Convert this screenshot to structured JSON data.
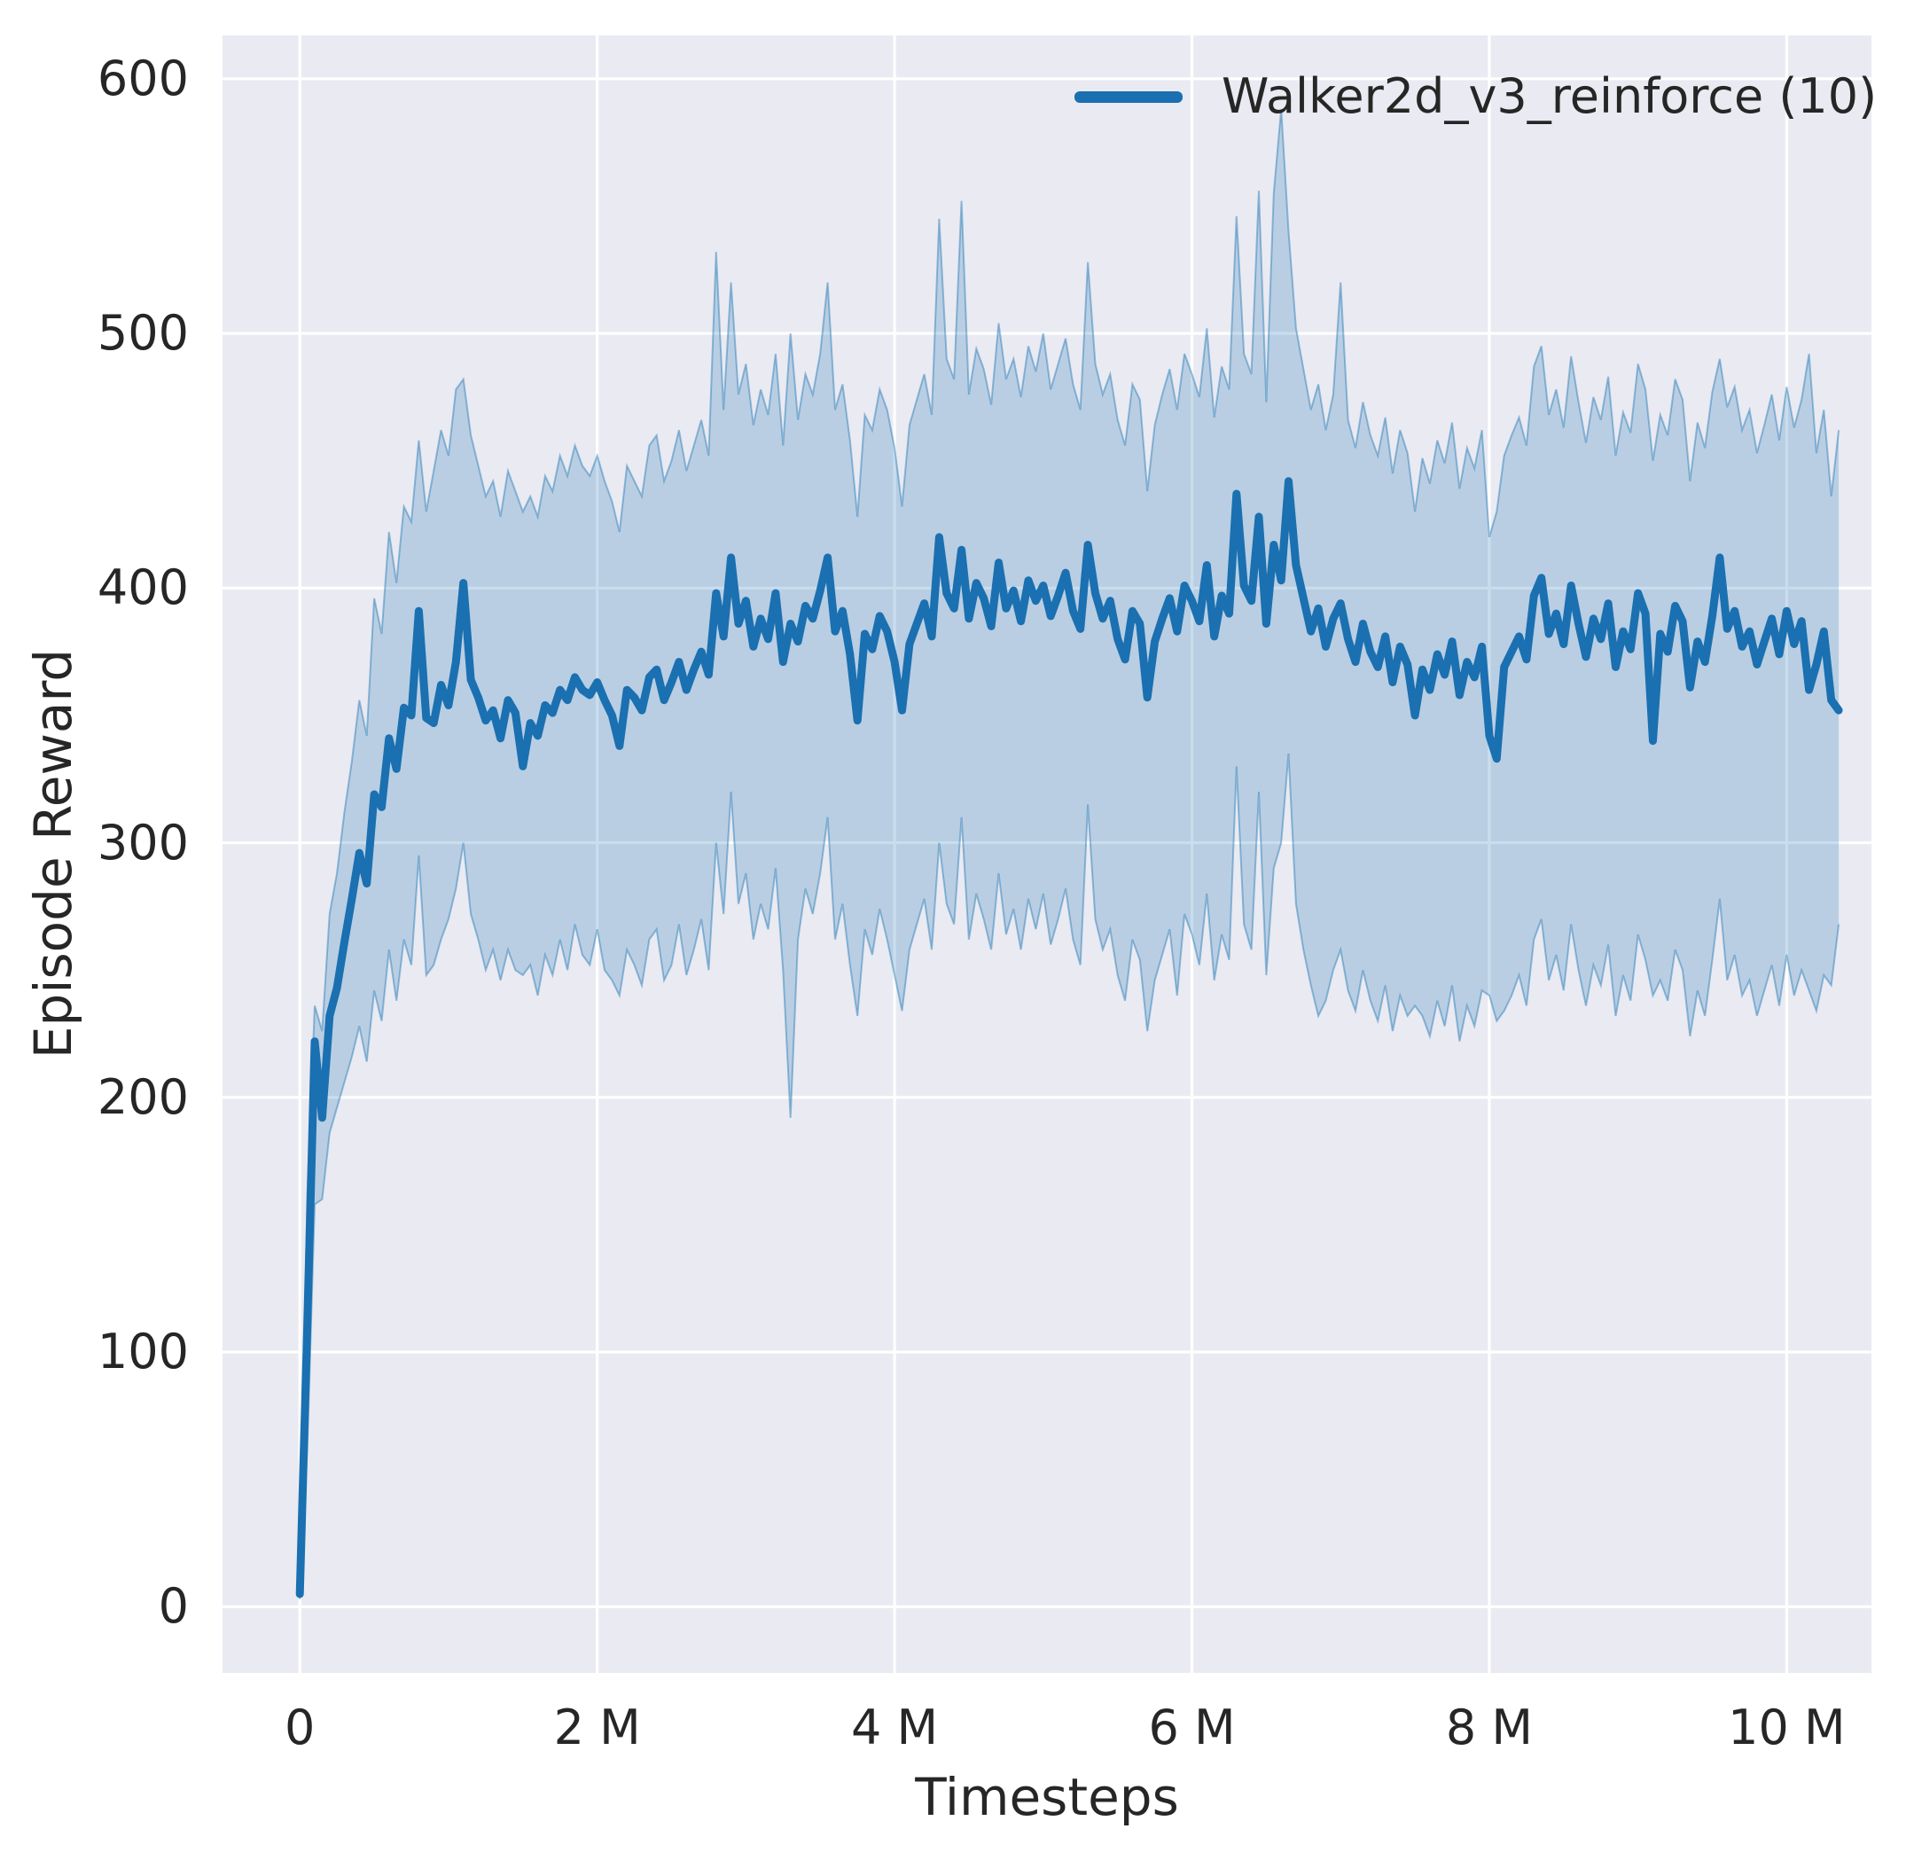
{
  "chart_data": {
    "type": "line",
    "title": "",
    "xlabel": "Timesteps",
    "ylabel": "Episode Reward",
    "legend_position": "upper right",
    "grid": true,
    "background_color": "#eaeaf2",
    "gridline_color": "#ffffff",
    "text_color": "#262626",
    "xlim": [
      -0.52,
      10.57
    ],
    "ylim": [
      -26,
      617
    ],
    "x_ticks": [
      {
        "value": 0,
        "label": "0"
      },
      {
        "value": 2,
        "label": "2 M"
      },
      {
        "value": 4,
        "label": "4 M"
      },
      {
        "value": 6,
        "label": "6 M"
      },
      {
        "value": 8,
        "label": "8 M"
      },
      {
        "value": 10,
        "label": "10 M"
      }
    ],
    "y_ticks": [
      {
        "value": 0,
        "label": "0"
      },
      {
        "value": 100,
        "label": "100"
      },
      {
        "value": 200,
        "label": "200"
      },
      {
        "value": 300,
        "label": "300"
      },
      {
        "value": 400,
        "label": "400"
      },
      {
        "value": 500,
        "label": "500"
      },
      {
        "value": 600,
        "label": "600"
      }
    ],
    "series": [
      {
        "name": "Walker2d_v3_reinforce (10)",
        "line_color": "#1a70b0",
        "band_color": "#1f77b4",
        "band_fill_opacity": 0.24,
        "band_edge_opacity": 0.45,
        "x_start": 0,
        "x_step": 0.05,
        "x_units": "millions",
        "mean": [
          5,
          110,
          222,
          192,
          232,
          243,
          261,
          278,
          296,
          284,
          319,
          314,
          341,
          329,
          353,
          350,
          391,
          349,
          347,
          362,
          354,
          371,
          402,
          364,
          357,
          348,
          352,
          341,
          356,
          351,
          330,
          347,
          342,
          354,
          351,
          360,
          356,
          365,
          360,
          358,
          363,
          356,
          350,
          338,
          360,
          357,
          352,
          365,
          368,
          356,
          363,
          371,
          360,
          368,
          375,
          366,
          398,
          381,
          412,
          386,
          395,
          377,
          388,
          380,
          398,
          371,
          386,
          379,
          393,
          388,
          399,
          412,
          383,
          391,
          374,
          348,
          382,
          376,
          389,
          383,
          371,
          352,
          378,
          386,
          394,
          381,
          420,
          398,
          392,
          415,
          388,
          402,
          396,
          385,
          410,
          392,
          399,
          387,
          403,
          395,
          401,
          389,
          397,
          406,
          391,
          384,
          417,
          398,
          388,
          395,
          380,
          372,
          391,
          386,
          357,
          379,
          388,
          396,
          383,
          401,
          395,
          387,
          409,
          381,
          397,
          390,
          437,
          401,
          395,
          428,
          386,
          417,
          403,
          442,
          409,
          396,
          383,
          392,
          377,
          388,
          394,
          380,
          371,
          386,
          375,
          369,
          381,
          363,
          377,
          370,
          350,
          368,
          360,
          374,
          366,
          379,
          358,
          371,
          365,
          377,
          342,
          333,
          369,
          375,
          381,
          372,
          397,
          404,
          382,
          390,
          378,
          401,
          386,
          373,
          388,
          380,
          394,
          369,
          383,
          376,
          398,
          390,
          340,
          382,
          375,
          393,
          387,
          361,
          379,
          371,
          389,
          412,
          384,
          391,
          377,
          383,
          370,
          379,
          388,
          374,
          391,
          378,
          387,
          360,
          370,
          383,
          356,
          352
        ],
        "lo": [
          3,
          62,
          158,
          160,
          186,
          196,
          206,
          216,
          228,
          214,
          242,
          230,
          258,
          238,
          262,
          252,
          295,
          248,
          252,
          262,
          270,
          282,
          300,
          272,
          262,
          250,
          258,
          246,
          258,
          250,
          248,
          252,
          240,
          256,
          248,
          262,
          250,
          268,
          256,
          252,
          266,
          250,
          246,
          240,
          258,
          252,
          244,
          262,
          266,
          246,
          252,
          268,
          248,
          258,
          270,
          250,
          300,
          272,
          320,
          276,
          288,
          262,
          276,
          266,
          290,
          250,
          192,
          262,
          282,
          272,
          288,
          310,
          262,
          276,
          252,
          232,
          266,
          256,
          274,
          262,
          248,
          234,
          258,
          268,
          278,
          258,
          300,
          276,
          268,
          310,
          262,
          280,
          270,
          258,
          288,
          264,
          274,
          258,
          278,
          266,
          280,
          260,
          270,
          282,
          262,
          252,
          315,
          270,
          258,
          266,
          248,
          238,
          262,
          254,
          226,
          246,
          256,
          266,
          240,
          272,
          264,
          252,
          280,
          246,
          264,
          254,
          330,
          268,
          258,
          320,
          248,
          290,
          300,
          335,
          276,
          258,
          244,
          232,
          238,
          250,
          258,
          242,
          234,
          250,
          238,
          230,
          244,
          226,
          240,
          232,
          236,
          232,
          224,
          238,
          228,
          244,
          222,
          236,
          228,
          242,
          240,
          230,
          234,
          240,
          248,
          236,
          262,
          270,
          246,
          256,
          242,
          268,
          250,
          236,
          252,
          244,
          260,
          232,
          248,
          238,
          264,
          254,
          240,
          246,
          238,
          258,
          250,
          224,
          242,
          232,
          254,
          278,
          246,
          256,
          240,
          246,
          232,
          242,
          252,
          236,
          256,
          240,
          250,
          242,
          234,
          248,
          244,
          268
        ],
        "hi": [
          6,
          162,
          236,
          226,
          272,
          288,
          312,
          332,
          356,
          342,
          396,
          382,
          422,
          402,
          432,
          426,
          458,
          430,
          446,
          462,
          452,
          478,
          482,
          460,
          448,
          436,
          442,
          428,
          446,
          438,
          430,
          436,
          428,
          444,
          438,
          452,
          444,
          456,
          448,
          444,
          452,
          442,
          434,
          422,
          448,
          442,
          436,
          456,
          460,
          442,
          450,
          462,
          446,
          456,
          466,
          452,
          532,
          470,
          520,
          476,
          488,
          464,
          478,
          468,
          492,
          456,
          500,
          466,
          484,
          476,
          492,
          520,
          470,
          480,
          458,
          428,
          468,
          462,
          478,
          470,
          455,
          432,
          464,
          474,
          484,
          468,
          545,
          490,
          482,
          552,
          476,
          494,
          486,
          472,
          504,
          482,
          490,
          475,
          495,
          485,
          500,
          478,
          488,
          498,
          480,
          470,
          528,
          488,
          476,
          484,
          466,
          456,
          480,
          474,
          438,
          464,
          476,
          486,
          470,
          492,
          484,
          475,
          502,
          467,
          487,
          478,
          546,
          492,
          484,
          556,
          473,
          555,
          588,
          540,
          502,
          486,
          470,
          480,
          462,
          476,
          520,
          466,
          455,
          473,
          460,
          452,
          467,
          445,
          462,
          453,
          430,
          451,
          441,
          458,
          449,
          465,
          439,
          455,
          447,
          462,
          420,
          430,
          452,
          460,
          467,
          456,
          487,
          495,
          468,
          478,
          463,
          491,
          473,
          457,
          475,
          466,
          483,
          452,
          469,
          461,
          488,
          478,
          450,
          468,
          460,
          482,
          474,
          442,
          465,
          455,
          477,
          490,
          471,
          479,
          462,
          470,
          453,
          464,
          476,
          458,
          479,
          463,
          474,
          492,
          453,
          470,
          436,
          462
        ]
      }
    ]
  },
  "legend": {
    "label": "Walker2d_v3_reinforce (10)"
  },
  "axes": {
    "xlabel": "Timesteps",
    "ylabel": "Episode Reward"
  }
}
